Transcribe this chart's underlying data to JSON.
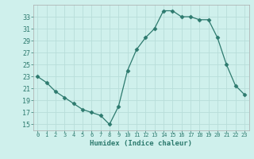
{
  "x": [
    0,
    1,
    2,
    3,
    4,
    5,
    6,
    7,
    8,
    9,
    10,
    11,
    12,
    13,
    14,
    15,
    16,
    17,
    18,
    19,
    20,
    21,
    22,
    23
  ],
  "y": [
    23,
    22,
    20.5,
    19.5,
    18.5,
    17.5,
    17,
    16.5,
    15,
    18,
    24,
    27.5,
    29.5,
    31,
    34,
    34,
    33,
    33,
    32.5,
    32.5,
    29.5,
    25,
    21.5,
    20
  ],
  "line_color": "#2d7a6e",
  "marker": "D",
  "marker_size": 2.5,
  "bg_color": "#cff0ec",
  "grid_color": "#b8ddd9",
  "xlabel": "Humidex (Indice chaleur)",
  "ylim": [
    14,
    35
  ],
  "yticks": [
    15,
    17,
    19,
    21,
    23,
    25,
    27,
    29,
    31,
    33
  ],
  "xtick_labels": [
    "0",
    "1",
    "2",
    "3",
    "4",
    "5",
    "6",
    "7",
    "8",
    "9",
    "10",
    "11",
    "12",
    "13",
    "14",
    "15",
    "16",
    "17",
    "18",
    "19",
    "20",
    "21",
    "22",
    "23"
  ]
}
